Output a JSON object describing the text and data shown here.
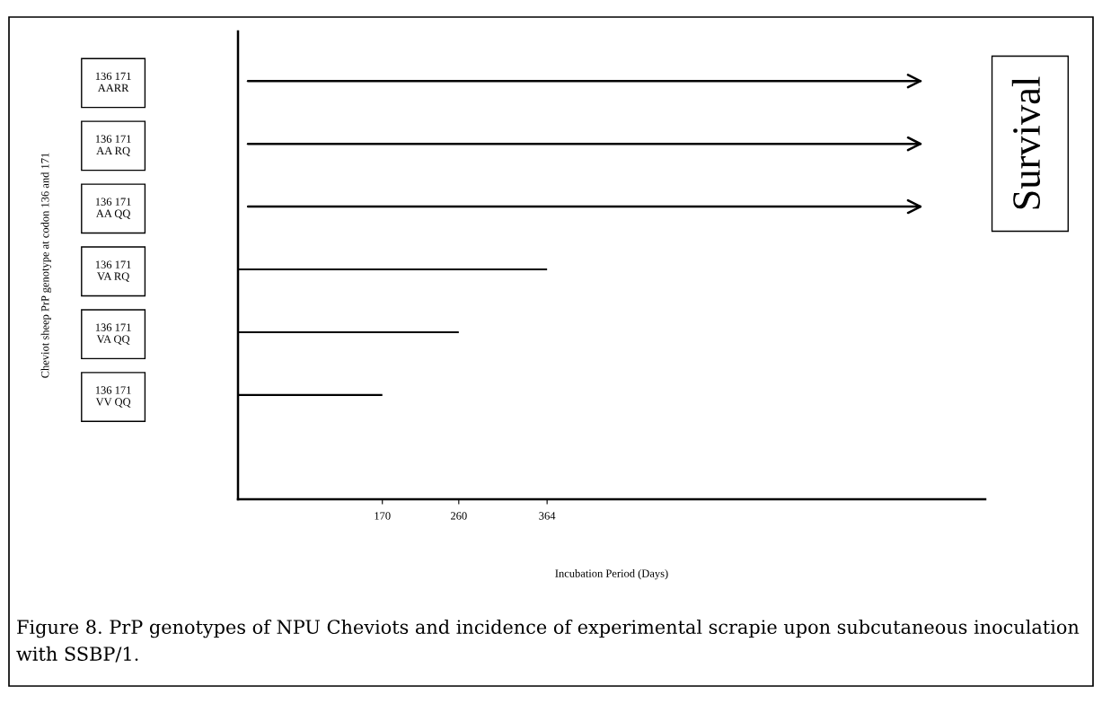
{
  "chart_data": {
    "type": "bar",
    "orientation": "horizontal",
    "categories": [
      "136 171\nAARR",
      "136 171\nAA RQ",
      "136 171\nAA QQ",
      "136 171\nVA RQ",
      "136 171\nVA QQ",
      "136 171\nVV QQ"
    ],
    "values": [
      null,
      null,
      null,
      364,
      260,
      170
    ],
    "color": "#000000",
    "xlim": [
      0,
      880
    ],
    "xticks": [
      170,
      260,
      364
    ],
    "xlabel": "Incubation Period (Days)",
    "ylabel": "Cheviot sheep PrP genotype at codon 136 and 171",
    "annotations": [
      "Survival",
      "Figure 8. PrP genotypes of NPU Cheviots and incidence of experimental scrapie upon subcutaneous inoculation with SSBP/1."
    ],
    "grid": false,
    "legend": false
  }
}
